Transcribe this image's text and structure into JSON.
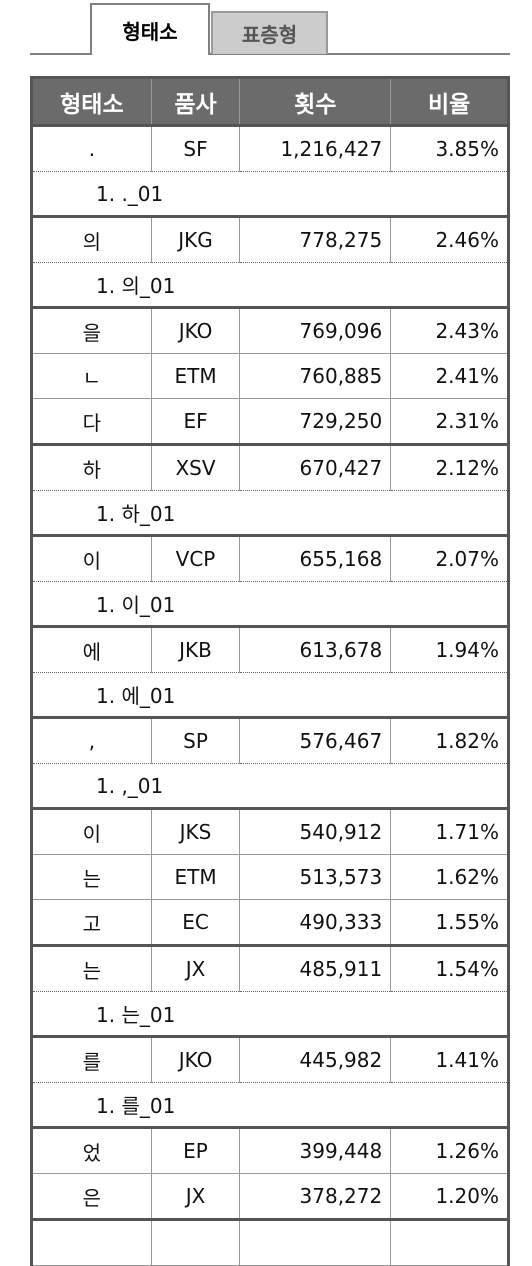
{
  "tabs": [
    {
      "label": "형태소",
      "active": true
    },
    {
      "label": "표층형",
      "active": false
    }
  ],
  "table": {
    "headers": [
      "형태소",
      "품사",
      "횟수",
      "비율"
    ],
    "rows": [
      {
        "type": "main",
        "group_start": true,
        "has_sense": true,
        "morph": ".",
        "pos": "SF",
        "count": "1,216,427",
        "ratio": "3.85%"
      },
      {
        "type": "sense",
        "text": "1. ._01"
      },
      {
        "type": "main",
        "group_start": true,
        "has_sense": true,
        "morph": "의",
        "pos": "JKG",
        "count": "778,275",
        "ratio": "2.46%"
      },
      {
        "type": "sense",
        "text": "1. 의_01"
      },
      {
        "type": "main",
        "group_start": true,
        "has_sense": false,
        "morph": "을",
        "pos": "JKO",
        "count": "769,096",
        "ratio": "2.43%"
      },
      {
        "type": "main",
        "group_start": false,
        "has_sense": false,
        "morph": "ㄴ",
        "pos": "ETM",
        "count": "760,885",
        "ratio": "2.41%"
      },
      {
        "type": "main",
        "group_start": false,
        "has_sense": false,
        "morph": "다",
        "pos": "EF",
        "count": "729,250",
        "ratio": "2.31%"
      },
      {
        "type": "main",
        "group_start": true,
        "has_sense": true,
        "morph": "하",
        "pos": "XSV",
        "count": "670,427",
        "ratio": "2.12%"
      },
      {
        "type": "sense",
        "text": "1. 하_01"
      },
      {
        "type": "main",
        "group_start": true,
        "has_sense": true,
        "morph": "이",
        "pos": "VCP",
        "count": "655,168",
        "ratio": "2.07%"
      },
      {
        "type": "sense",
        "text": "1. 이_01"
      },
      {
        "type": "main",
        "group_start": true,
        "has_sense": true,
        "morph": "에",
        "pos": "JKB",
        "count": "613,678",
        "ratio": "1.94%"
      },
      {
        "type": "sense",
        "text": "1. 에_01"
      },
      {
        "type": "main",
        "group_start": true,
        "has_sense": true,
        "morph": ",",
        "pos": "SP",
        "count": "576,467",
        "ratio": "1.82%"
      },
      {
        "type": "sense",
        "text": "1. ,_01"
      },
      {
        "type": "main",
        "group_start": true,
        "has_sense": false,
        "morph": "이",
        "pos": "JKS",
        "count": "540,912",
        "ratio": "1.71%"
      },
      {
        "type": "main",
        "group_start": false,
        "has_sense": false,
        "morph": "는",
        "pos": "ETM",
        "count": "513,573",
        "ratio": "1.62%"
      },
      {
        "type": "main",
        "group_start": false,
        "has_sense": false,
        "morph": "고",
        "pos": "EC",
        "count": "490,333",
        "ratio": "1.55%"
      },
      {
        "type": "main",
        "group_start": true,
        "has_sense": true,
        "morph": "는",
        "pos": "JX",
        "count": "485,911",
        "ratio": "1.54%"
      },
      {
        "type": "sense",
        "text": "1. 는_01"
      },
      {
        "type": "main",
        "group_start": true,
        "has_sense": true,
        "morph": "를",
        "pos": "JKO",
        "count": "445,982",
        "ratio": "1.41%"
      },
      {
        "type": "sense",
        "text": "1. 를_01"
      },
      {
        "type": "main",
        "group_start": true,
        "has_sense": false,
        "morph": "었",
        "pos": "EP",
        "count": "399,448",
        "ratio": "1.26%"
      },
      {
        "type": "main",
        "group_start": false,
        "has_sense": false,
        "morph": "은",
        "pos": "JX",
        "count": "378,272",
        "ratio": "1.20%"
      },
      {
        "type": "main",
        "group_start": true,
        "has_sense": false,
        "morph": "",
        "pos": "",
        "count": "",
        "ratio": ""
      }
    ]
  }
}
